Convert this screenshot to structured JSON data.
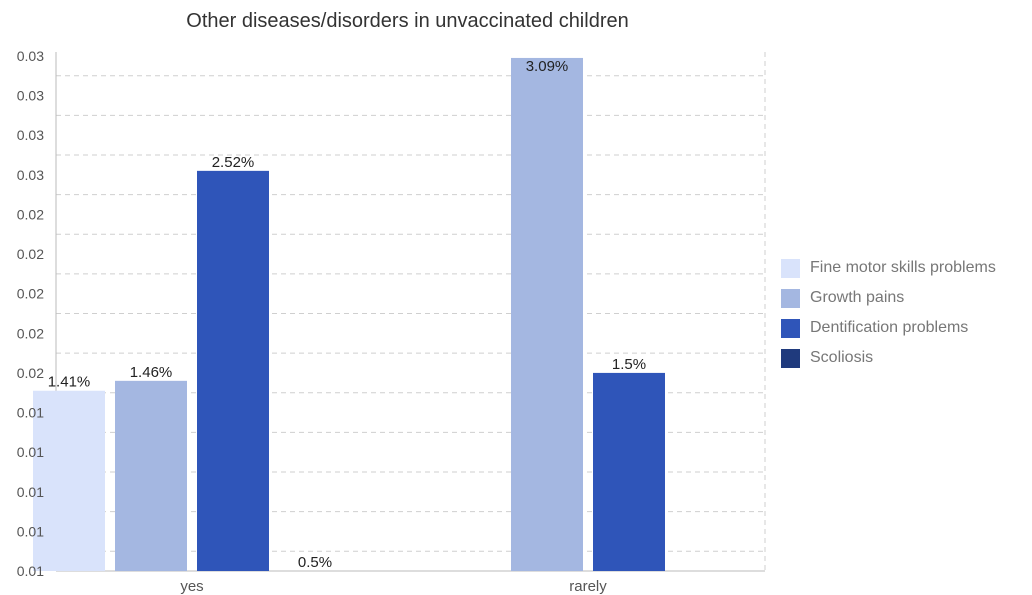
{
  "chart_data": {
    "type": "bar",
    "title": "Other diseases/disorders in unvaccinated children",
    "xlabel": "",
    "ylabel": "",
    "categories": [
      "yes",
      "rarely"
    ],
    "series": [
      {
        "name": "Fine motor skills problems",
        "color": "#d9e3fb",
        "values": [
          0.0141,
          null
        ],
        "labels": [
          "1.41%",
          null
        ]
      },
      {
        "name": "Growth pains",
        "color": "#a4b7e1",
        "values": [
          0.0146,
          0.0309
        ],
        "labels": [
          "1.46%",
          "3.09%"
        ]
      },
      {
        "name": "Dentification problems",
        "color": "#2f55b9",
        "values": [
          0.0252,
          0.015
        ],
        "labels": [
          "2.52%",
          "1.5%"
        ]
      },
      {
        "name": "Scoliosis",
        "color": "#1f3a7d",
        "values": [
          0.005,
          null
        ],
        "labels": [
          "0.5%",
          null
        ]
      }
    ],
    "ylim": [
      0.005,
      0.0312
    ],
    "yticks": [
      0.005,
      0.007,
      0.009,
      0.011,
      0.013,
      0.015,
      0.017,
      0.019,
      0.021,
      0.023,
      0.025,
      0.027,
      0.029,
      0.031
    ],
    "ytick_labels": [
      "0.01",
      "0.01",
      "0.01",
      "0.01",
      "0.01",
      "0.02",
      "0.02",
      "0.02",
      "0.02",
      "0.02",
      "0.03",
      "0.03",
      "0.03",
      "0.03"
    ],
    "grid": true,
    "legend_position": "right"
  }
}
